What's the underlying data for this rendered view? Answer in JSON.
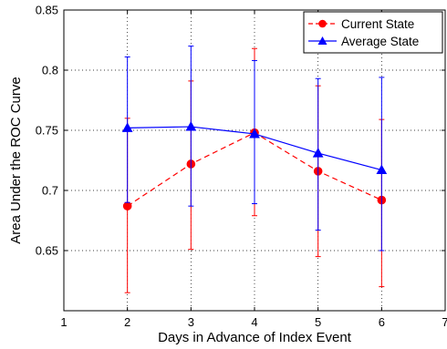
{
  "chart_data": {
    "type": "line",
    "title": "",
    "xlabel": "Days in Advance of Index Event",
    "ylabel": "Area Under the ROC Curve",
    "xlim": [
      1,
      7
    ],
    "ylim": [
      0.6,
      0.85
    ],
    "xticks": [
      1,
      2,
      3,
      4,
      5,
      6,
      7
    ],
    "yticks": [
      0.65,
      0.7,
      0.75,
      0.8,
      0.85
    ],
    "xtick_labels": [
      "1",
      "2",
      "3",
      "4",
      "5",
      "6",
      "7"
    ],
    "ytick_labels": [
      "0.65",
      "0.7",
      "0.75",
      "0.8",
      "0.85"
    ],
    "grid": true,
    "legend_position": "top-right",
    "series": [
      {
        "name": "Current State",
        "color": "#ff0000",
        "line_style": "dashed",
        "marker": "circle",
        "x": [
          2,
          3,
          4,
          5,
          6
        ],
        "y": [
          0.687,
          0.722,
          0.748,
          0.716,
          0.692
        ],
        "err_low": [
          0.615,
          0.651,
          0.679,
          0.645,
          0.62
        ],
        "err_high": [
          0.76,
          0.791,
          0.818,
          0.787,
          0.759
        ]
      },
      {
        "name": "Average State",
        "color": "#0000ff",
        "line_style": "solid",
        "marker": "triangle",
        "x": [
          2,
          3,
          4,
          5,
          6
        ],
        "y": [
          0.752,
          0.753,
          0.747,
          0.731,
          0.717
        ],
        "err_low": [
          0.69,
          0.687,
          0.689,
          0.667,
          0.65
        ],
        "err_high": [
          0.811,
          0.82,
          0.808,
          0.793,
          0.794
        ]
      }
    ]
  }
}
